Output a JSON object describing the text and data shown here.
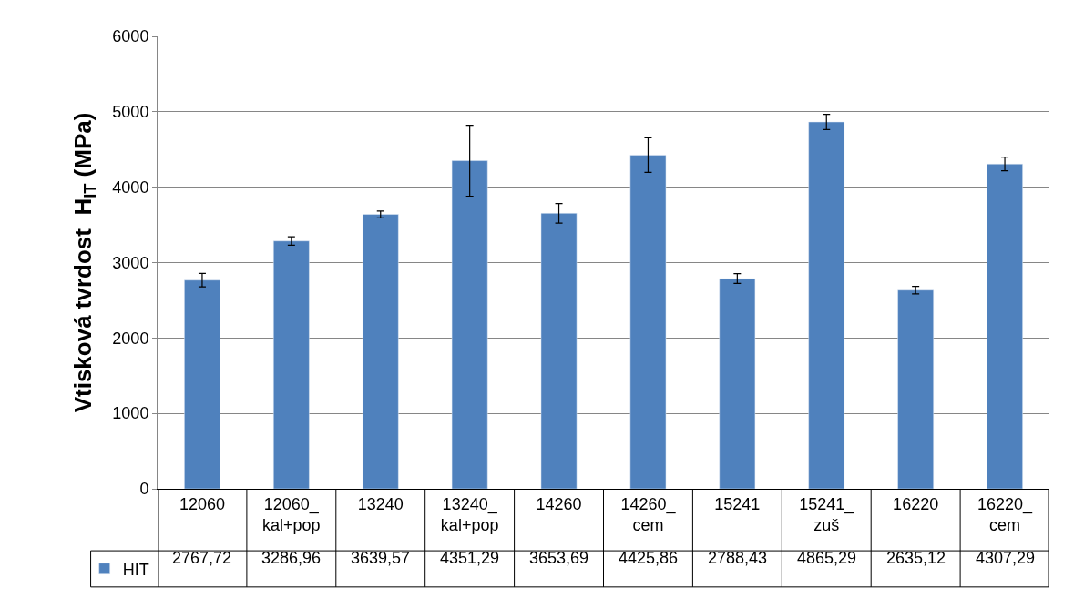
{
  "chart_data": {
    "type": "bar",
    "ylabel": "Vtisková tvrdost  H$_{IT}$ (MPa)",
    "categories": [
      "12060",
      "12060_kal+pop",
      "13240",
      "13240_kal+pop",
      "14260",
      "14260_cem",
      "15241",
      "15241_zuš",
      "16220",
      "16220_cem"
    ],
    "series": [
      {
        "name": "HIT",
        "color": "#4f81bd",
        "values": [
          2767.72,
          3286.96,
          3639.57,
          4351.29,
          3653.69,
          4425.86,
          2788.43,
          4865.29,
          2635.12,
          4307.29
        ],
        "errors": [
          90,
          55,
          45,
          470,
          130,
          230,
          65,
          100,
          50,
          90
        ],
        "value_labels": [
          "2767,72",
          "3286,96",
          "3639,57",
          "4351,29",
          "3653,69",
          "4425,86",
          "2788,43",
          "4865,29",
          "2635,12",
          "4307,29"
        ]
      }
    ],
    "ylim": [
      0,
      6000
    ],
    "yticks": [
      0,
      1000,
      2000,
      3000,
      4000,
      5000,
      6000
    ],
    "grid": "y",
    "legend": "bottom left"
  }
}
